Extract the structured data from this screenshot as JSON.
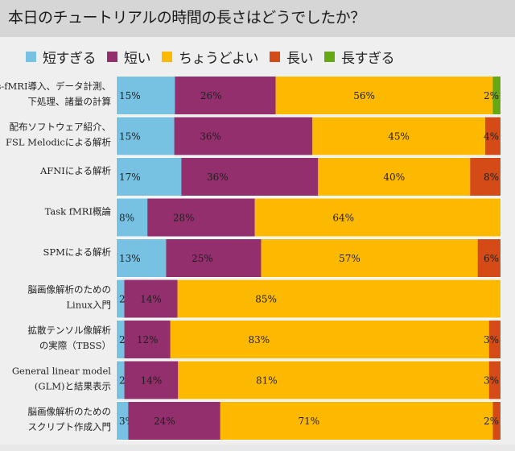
{
  "chart_data": {
    "type": "bar",
    "orientation": "horizontal",
    "stacked": true,
    "normalized": true,
    "title": "本日のチュートリアルの時間の長さはどうでしたか？",
    "xlabel": "",
    "ylabel": "",
    "xlim": [
      0,
      100
    ],
    "grid": false,
    "legend_position": "top-left",
    "categories": [
      [
        "rs-fMRI導入、データ計測、",
        "下処理、諸量の計算"
      ],
      [
        "配布ソフトウェア紹介、",
        "FSL Melodicによる解析"
      ],
      [
        "AFNIによる解析"
      ],
      [
        "Task fMRI概論"
      ],
      [
        "SPMによる解析"
      ],
      [
        "脳画像解析のための",
        "Linux入門"
      ],
      [
        "拡散テンソル像解析",
        "の実際（TBSS）"
      ],
      [
        "General linear model",
        "(GLM)と結果表示"
      ],
      [
        "脳画像解析のための",
        "スクリプト作成入門"
      ]
    ],
    "series": [
      {
        "name": "短すぎる",
        "color": "#77c2e3",
        "values": [
          15,
          15,
          17,
          8,
          13,
          2,
          2,
          2,
          3
        ]
      },
      {
        "name": "短い",
        "color": "#922f6c",
        "values": [
          26,
          36,
          36,
          28,
          25,
          14,
          12,
          14,
          24
        ]
      },
      {
        "name": "ちょうどよい",
        "color": "#fdb900",
        "values": [
          56,
          45,
          40,
          64,
          57,
          85,
          83,
          81,
          71
        ]
      },
      {
        "name": "長い",
        "color": "#d54b17",
        "values": [
          0,
          4,
          8,
          0,
          6,
          0,
          3,
          3,
          2
        ]
      },
      {
        "name": "長すぎる",
        "color": "#66a813",
        "values": [
          2,
          0,
          0,
          0,
          0,
          0,
          0,
          0,
          0
        ]
      }
    ],
    "value_label_suffix": "%"
  }
}
